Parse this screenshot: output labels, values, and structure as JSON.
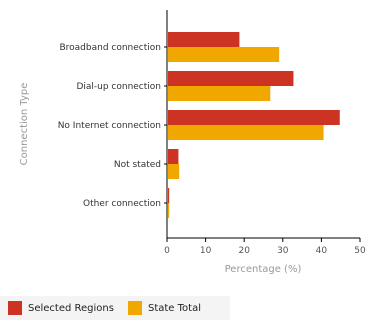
{
  "chart_data": {
    "type": "bar",
    "orientation": "horizontal",
    "categories": [
      "Broadband connection",
      "Dial-up connection",
      "No Internet connection",
      "Not stated",
      "Other connection"
    ],
    "series": [
      {
        "name": "Selected Regions",
        "color": "#cc3322",
        "values": [
          18.5,
          32.5,
          44.5,
          2.7,
          0.3
        ]
      },
      {
        "name": "State Total",
        "color": "#f0a800",
        "values": [
          28.8,
          26.5,
          40.3,
          2.9,
          0.3
        ]
      }
    ],
    "xlabel": "Percentage (%)",
    "ylabel": "Connection Type",
    "xlim": [
      0,
      50
    ],
    "xticks": [
      0,
      10,
      20,
      30,
      40,
      50
    ],
    "grid": false,
    "legend_position": "bottom"
  }
}
